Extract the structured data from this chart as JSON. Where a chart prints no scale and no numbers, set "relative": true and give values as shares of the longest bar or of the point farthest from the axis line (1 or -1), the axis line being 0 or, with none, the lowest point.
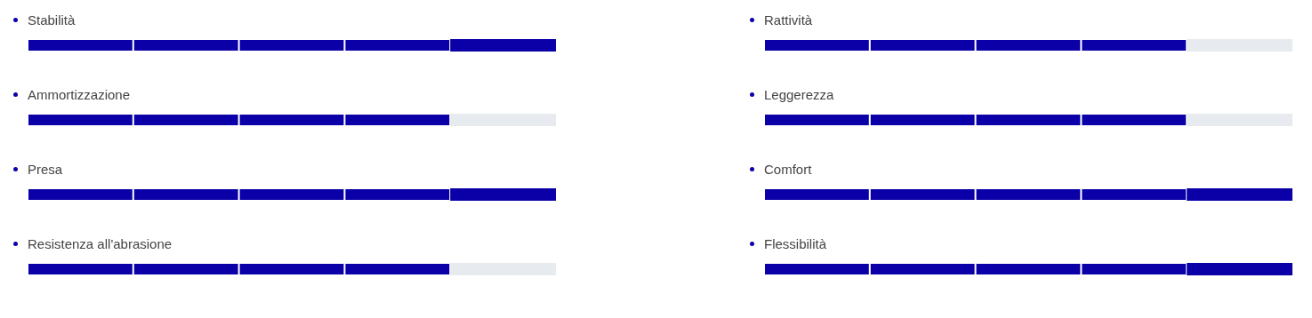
{
  "chart_data": [
    {
      "type": "bar",
      "orientation": "horizontal",
      "stacked": true,
      "relative": true,
      "legend": false,
      "categories": [
        "Stabilità",
        "Ammortizzazione",
        "Presa",
        "Resistenza all'abrasione"
      ],
      "series": [
        {
          "values": [
            0.2,
            0.2,
            0.2,
            0.2
          ],
          "colors": [
            "#0b00a8",
            "#0b00a8",
            "#0b00a8",
            "#0b00a8"
          ]
        },
        {
          "values": [
            0.2,
            0.2,
            0.2,
            0.2
          ],
          "colors": [
            "#0b00a8",
            "#0b00a8",
            "#0b00a8",
            "#0b00a8"
          ]
        },
        {
          "values": [
            0.2,
            0.2,
            0.2,
            0.2
          ],
          "colors": [
            "#0b00a8",
            "#0b00a8",
            "#0b00a8",
            "#0b00a8"
          ]
        },
        {
          "values": [
            0.2,
            0.2,
            0.2,
            0.2
          ],
          "colors": [
            "#0b00a8",
            "#0b00a8",
            "#0b00a8",
            "#0b00a8"
          ]
        },
        {
          "values": [
            0.2,
            0.2,
            0.2,
            0.2
          ],
          "colors": [
            "#0b00a8",
            "#e7eaee",
            "#0b00a8",
            "#e7eaee"
          ]
        }
      ]
    },
    {
      "type": "bar",
      "orientation": "horizontal",
      "stacked": true,
      "relative": true,
      "legend": false,
      "categories": [
        "Rattività",
        "Leggerezza",
        "Comfort",
        "Flessibilità"
      ],
      "series": [
        {
          "values": [
            0.2,
            0.2,
            0.2,
            0.2
          ],
          "colors": [
            "#0b00a8",
            "#0b00a8",
            "#0b00a8",
            "#0b00a8"
          ]
        },
        {
          "values": [
            0.2,
            0.2,
            0.2,
            0.2
          ],
          "colors": [
            "#0b00a8",
            "#0b00a8",
            "#0b00a8",
            "#0b00a8"
          ]
        },
        {
          "values": [
            0.2,
            0.2,
            0.2,
            0.2
          ],
          "colors": [
            "#0b00a8",
            "#0b00a8",
            "#0b00a8",
            "#0b00a8"
          ]
        },
        {
          "values": [
            0.2,
            0.2,
            0.2,
            0.2
          ],
          "colors": [
            "#0b00a8",
            "#0b00a8",
            "#0b00a8",
            "#0b00a8"
          ]
        },
        {
          "values": [
            0.2,
            0.2,
            0.2,
            0.2
          ],
          "colors": [
            "#e7eaee",
            "#e7eaee",
            "#0b00a8",
            "#0b00a8"
          ]
        }
      ]
    }
  ]
}
